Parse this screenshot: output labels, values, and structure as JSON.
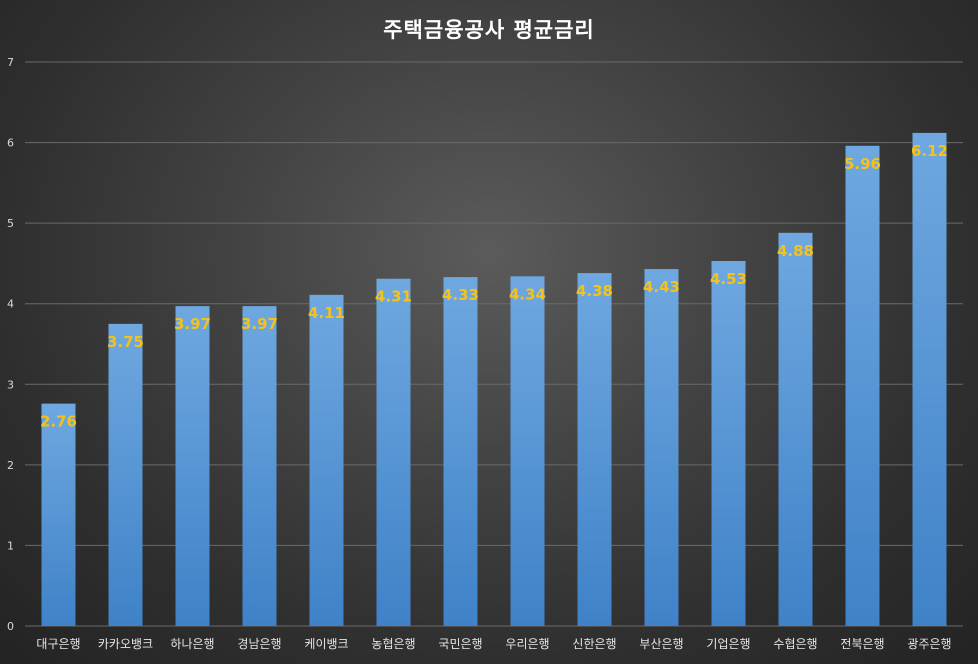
{
  "chart_data": {
    "type": "bar",
    "title": "주택금융공사 평균금리",
    "categories": [
      "대구은행",
      "카카오뱅크",
      "하나은행",
      "경남은행",
      "케이뱅크",
      "농협은행",
      "국민은행",
      "우리은행",
      "신한은행",
      "부산은행",
      "기업은행",
      "수협은행",
      "전북은행",
      "광주은행"
    ],
    "values": [
      2.76,
      3.75,
      3.97,
      3.97,
      4.11,
      4.31,
      4.33,
      4.34,
      4.38,
      4.43,
      4.53,
      4.88,
      5.96,
      6.12
    ],
    "data_labels": [
      "2.76",
      "3.75",
      "3.97",
      "3.97",
      "4.11",
      "4.31",
      "4.33",
      "4.34",
      "4.38",
      "4.43",
      "4.53",
      "4.88",
      "5.96",
      "6.12"
    ],
    "yticks": [
      "0",
      "1",
      "2",
      "3",
      "4",
      "5",
      "6",
      "7"
    ],
    "ylim": [
      0,
      7
    ],
    "xlabel": "",
    "ylabel": "",
    "grid": true,
    "legend": "none",
    "colors": {
      "bar_top": "#6fa8e0",
      "bar_bottom": "#3f82c8",
      "label": "#f5c21b",
      "grid": "#6a6a6a"
    }
  }
}
